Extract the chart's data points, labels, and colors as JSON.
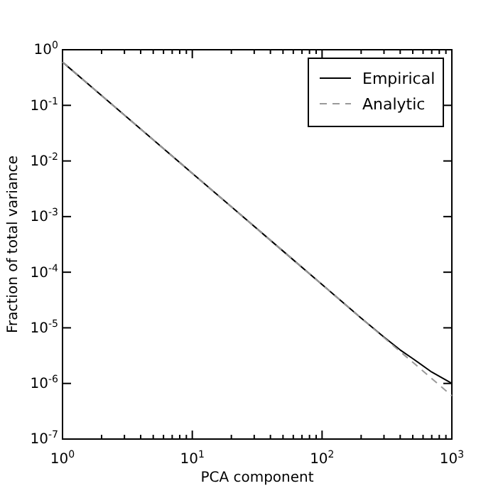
{
  "chart_data": {
    "type": "line",
    "xlabel": "PCA component",
    "ylabel": "Fraction of total variance",
    "log": "xy",
    "legend": "top right",
    "grid": false,
    "xlim": [
      1,
      1000
    ],
    "ylim": [
      1e-07,
      1
    ],
    "xticks": [
      {
        "value": 1,
        "label": "10$^{0}$"
      },
      {
        "value": 2,
        "label": null
      },
      {
        "value": 3,
        "label": null
      },
      {
        "value": 4,
        "label": null
      },
      {
        "value": 5,
        "label": null
      },
      {
        "value": 6,
        "label": null
      },
      {
        "value": 7,
        "label": null
      },
      {
        "value": 8,
        "label": null
      },
      {
        "value": 9,
        "label": null
      },
      {
        "value": 10,
        "label": "10$^{1}$"
      },
      {
        "value": 20,
        "label": null
      },
      {
        "value": 30,
        "label": null
      },
      {
        "value": 40,
        "label": null
      },
      {
        "value": 50,
        "label": null
      },
      {
        "value": 60,
        "label": null
      },
      {
        "value": 70,
        "label": null
      },
      {
        "value": 80,
        "label": null
      },
      {
        "value": 90,
        "label": null
      },
      {
        "value": 100,
        "label": "10$^{2}$"
      },
      {
        "value": 200,
        "label": null
      },
      {
        "value": 300,
        "label": null
      },
      {
        "value": 400,
        "label": null
      },
      {
        "value": 500,
        "label": null
      },
      {
        "value": 600,
        "label": null
      },
      {
        "value": 700,
        "label": null
      },
      {
        "value": 800,
        "label": null
      },
      {
        "value": 900,
        "label": null
      },
      {
        "value": 1000,
        "label": "10$^{3}$"
      }
    ],
    "yticks": [
      {
        "value": 1e-07,
        "label": "10$^{-7}$"
      },
      {
        "value": 1e-06,
        "label": "10$^{-6}$"
      },
      {
        "value": 1e-05,
        "label": "10$^{-5}$"
      },
      {
        "value": 0.0001,
        "label": "10$^{-4}$"
      },
      {
        "value": 0.001,
        "label": "10$^{-3}$"
      },
      {
        "value": 0.01,
        "label": "10$^{-2}$"
      },
      {
        "value": 0.1,
        "label": "10$^{-1}$"
      },
      {
        "value": 1,
        "label": "10$^{0}$"
      }
    ],
    "series": [
      {
        "name": "Empirical",
        "color": "#000000",
        "line_style": "solid",
        "x": [
          1,
          2,
          5,
          10,
          20,
          50,
          100,
          200,
          300,
          400,
          500,
          700,
          1000
        ],
        "values": [
          0.6,
          0.15,
          0.024,
          0.006,
          0.0015,
          0.00024,
          6e-05,
          1.5e-05,
          6.8e-06,
          4e-06,
          2.8e-06,
          1.6e-06,
          1e-06
        ]
      },
      {
        "name": "Analytic",
        "color": "#999999",
        "line_style": "dashed",
        "x": [
          1,
          10,
          100,
          1000
        ],
        "values": [
          0.6,
          0.006,
          6e-05,
          6e-07
        ]
      }
    ]
  }
}
